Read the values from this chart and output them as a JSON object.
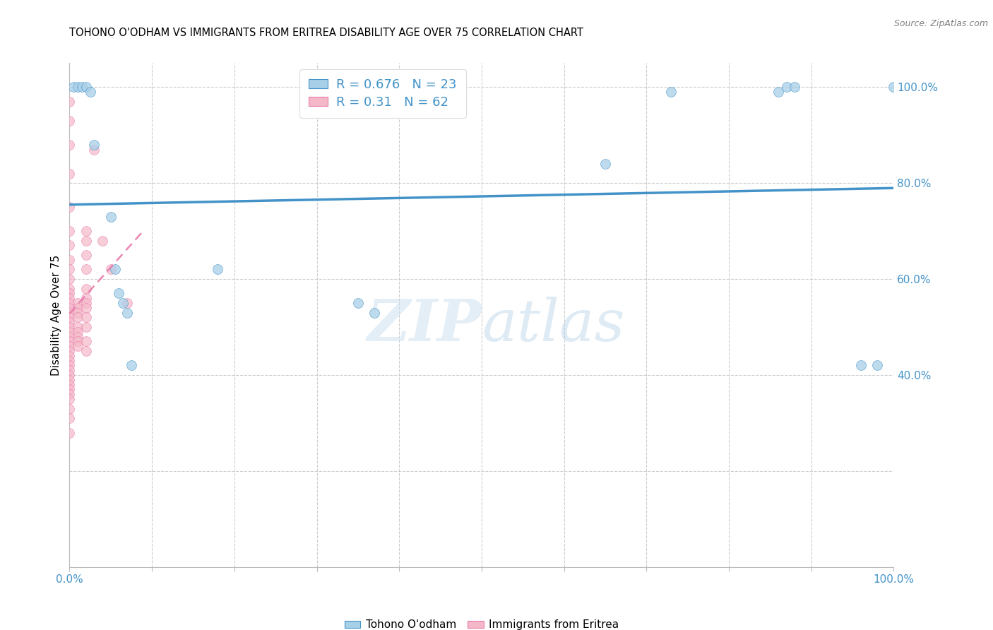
{
  "title": "TOHONO O'ODHAM VS IMMIGRANTS FROM ERITREA DISABILITY AGE OVER 75 CORRELATION CHART",
  "source": "Source: ZipAtlas.com",
  "ylabel": "Disability Age Over 75",
  "legend_label1": "Tohono O'odham",
  "legend_label2": "Immigrants from Eritrea",
  "r1": 0.676,
  "n1": 23,
  "r2": 0.31,
  "n2": 62,
  "color1": "#a8cfe8",
  "color2": "#f4b8c8",
  "line_color1": "#4393c9",
  "line_color2": "#e87aab",
  "watermark_zip": "ZIP",
  "watermark_atlas": "atlas",
  "xlim": [
    0.0,
    1.0
  ],
  "ylim": [
    0.0,
    1.05
  ],
  "xticks_major": [
    0.0,
    0.1,
    0.2,
    0.3,
    0.4,
    0.5,
    0.6,
    0.7,
    0.8,
    0.9,
    1.0
  ],
  "yticks_right": [
    0.4,
    0.6,
    0.8,
    1.0
  ],
  "ytick_right_labels": [
    "40.0%",
    "60.0%",
    "80.0%",
    "100.0%"
  ],
  "tohono_x": [
    0.005,
    0.01,
    0.015,
    0.02,
    0.025,
    0.03,
    0.05,
    0.055,
    0.06,
    0.065,
    0.07,
    0.075,
    0.18,
    0.35,
    0.37,
    0.65,
    0.73,
    0.86,
    0.87,
    0.88,
    0.96,
    0.98,
    1.0
  ],
  "tohono_y": [
    1.0,
    1.0,
    1.0,
    1.0,
    0.99,
    0.88,
    0.73,
    0.62,
    0.57,
    0.55,
    0.53,
    0.42,
    0.62,
    0.55,
    0.53,
    0.84,
    0.99,
    0.99,
    1.0,
    1.0,
    0.42,
    0.42,
    1.0
  ],
  "eritrea_x": [
    0.0,
    0.0,
    0.0,
    0.0,
    0.0,
    0.0,
    0.0,
    0.0,
    0.0,
    0.0,
    0.0,
    0.0,
    0.0,
    0.0,
    0.0,
    0.0,
    0.0,
    0.0,
    0.0,
    0.0,
    0.0,
    0.0,
    0.0,
    0.0,
    0.0,
    0.0,
    0.0,
    0.0,
    0.0,
    0.0,
    0.0,
    0.0,
    0.0,
    0.0,
    0.0,
    0.0,
    0.0,
    0.01,
    0.01,
    0.01,
    0.01,
    0.01,
    0.01,
    0.01,
    0.01,
    0.01,
    0.02,
    0.02,
    0.02,
    0.02,
    0.02,
    0.02,
    0.02,
    0.02,
    0.02,
    0.02,
    0.02,
    0.02,
    0.03,
    0.04,
    0.05,
    0.07
  ],
  "eritrea_y": [
    0.97,
    0.93,
    0.88,
    0.82,
    0.75,
    0.7,
    0.67,
    0.64,
    0.62,
    0.6,
    0.58,
    0.57,
    0.56,
    0.55,
    0.54,
    0.53,
    0.52,
    0.51,
    0.5,
    0.49,
    0.48,
    0.47,
    0.46,
    0.45,
    0.44,
    0.43,
    0.42,
    0.41,
    0.4,
    0.39,
    0.38,
    0.37,
    0.36,
    0.35,
    0.33,
    0.31,
    0.28,
    0.55,
    0.54,
    0.53,
    0.52,
    0.5,
    0.49,
    0.48,
    0.47,
    0.46,
    0.7,
    0.68,
    0.65,
    0.62,
    0.58,
    0.56,
    0.55,
    0.54,
    0.52,
    0.5,
    0.47,
    0.45,
    0.87,
    0.68,
    0.62,
    0.55
  ]
}
